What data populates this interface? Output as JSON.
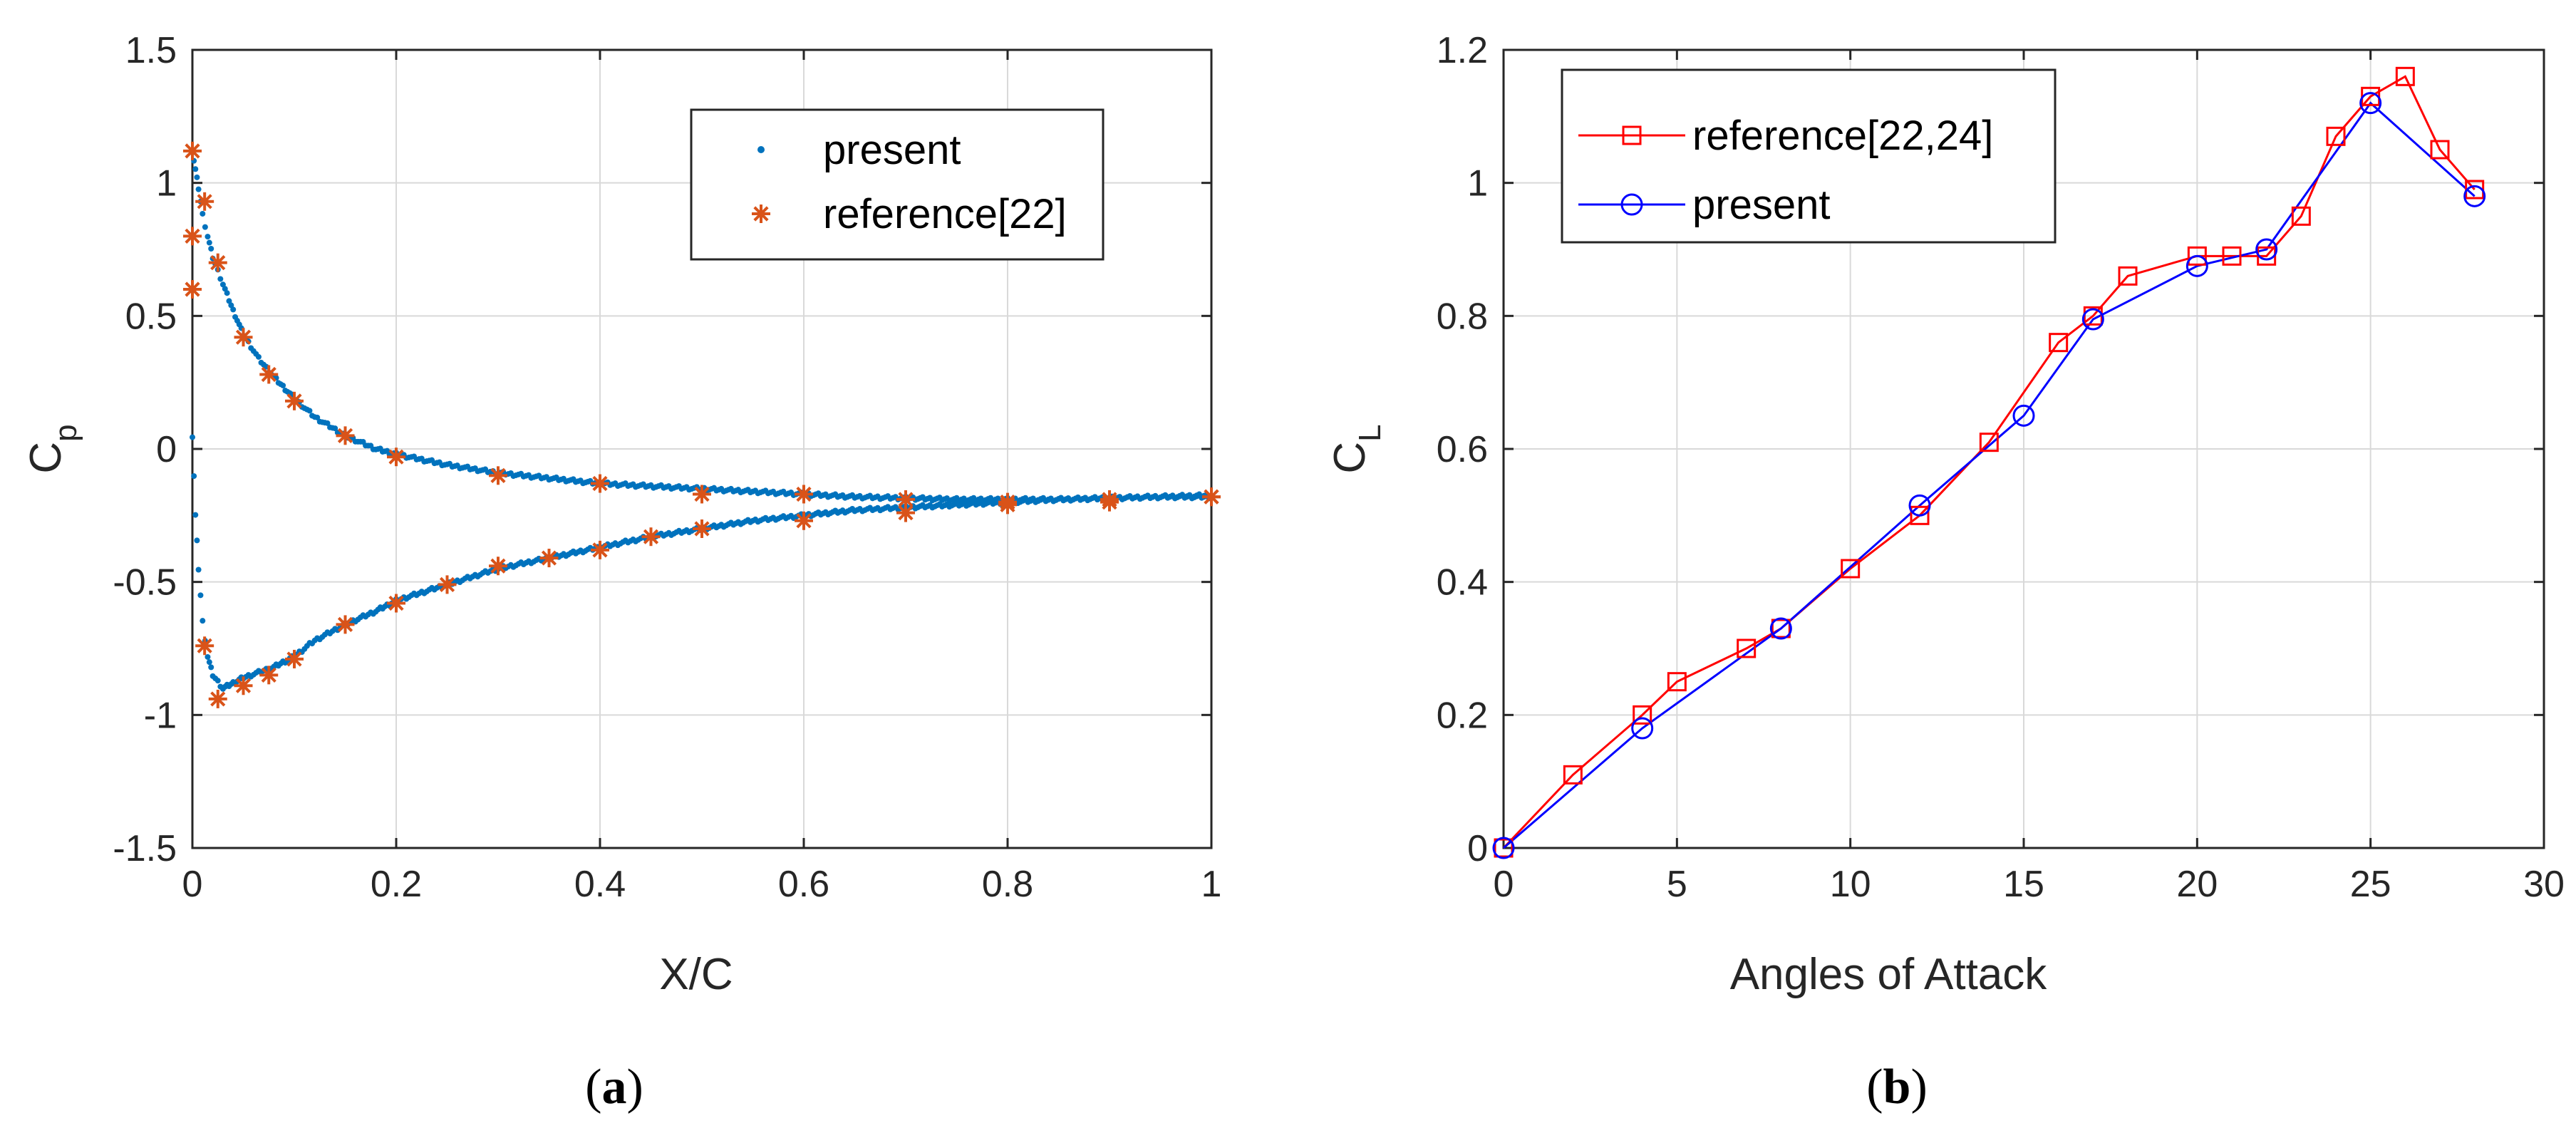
{
  "colors": {
    "present_a": "#0072BD",
    "reference_a": "#D95319",
    "reference_b": "#FF0000",
    "present_b": "#0000FF",
    "grid": "#D9D9D9",
    "axis": "#262626"
  },
  "panels": {
    "a": {
      "open": "(",
      "letter": "a",
      "close": ")"
    },
    "b": {
      "open": "(",
      "letter": "b",
      "close": ")"
    }
  },
  "chart_data": [
    {
      "type": "scatter",
      "xlabel": "X/C",
      "ylabel": "C",
      "ylabel_subscript": "p",
      "xlim": [
        0,
        1
      ],
      "ylim": [
        -1.5,
        1.5
      ],
      "xticks": [
        0,
        0.2,
        0.4,
        0.6,
        0.8,
        1
      ],
      "xtick_labels": [
        "0",
        "0.2",
        "0.4",
        "0.6",
        "0.8",
        "1"
      ],
      "yticks": [
        -1.5,
        -1,
        -0.5,
        0,
        0.5,
        1,
        1.5
      ],
      "ytick_labels": [
        "-1.5",
        "-1",
        "-0.5",
        "0",
        "0.5",
        "1",
        "1.5"
      ],
      "grid": true,
      "legend": "top-right",
      "series": [
        {
          "name": "present",
          "marker": "dot",
          "upper_surface": {
            "x": [
              0.0,
              0.003,
              0.006,
              0.01,
              0.015,
              0.02,
              0.03,
              0.04,
              0.05,
              0.065,
              0.08,
              0.1,
              0.12,
              0.15,
              0.18,
              0.2,
              0.25,
              0.3,
              0.35,
              0.4,
              0.45,
              0.5,
              0.55,
              0.6,
              0.65,
              0.7,
              0.75,
              0.8,
              0.85,
              0.9,
              0.95,
              1.0
            ],
            "y": [
              1.12,
              1.05,
              0.98,
              0.88,
              0.8,
              0.72,
              0.62,
              0.52,
              0.43,
              0.34,
              0.27,
              0.19,
              0.12,
              0.05,
              0.0,
              -0.02,
              -0.06,
              -0.09,
              -0.11,
              -0.13,
              -0.14,
              -0.15,
              -0.16,
              -0.17,
              -0.18,
              -0.185,
              -0.19,
              -0.19,
              -0.19,
              -0.185,
              -0.18,
              -0.18
            ]
          },
          "lower_surface": {
            "x": [
              0.0,
              0.003,
              0.006,
              0.01,
              0.015,
              0.02,
              0.03,
              0.04,
              0.05,
              0.065,
              0.08,
              0.1,
              0.12,
              0.15,
              0.18,
              0.2,
              0.25,
              0.3,
              0.35,
              0.4,
              0.45,
              0.5,
              0.55,
              0.6,
              0.65,
              0.7,
              0.75,
              0.8,
              0.85,
              0.9,
              0.95,
              1.0
            ],
            "y": [
              0.05,
              -0.25,
              -0.45,
              -0.65,
              -0.78,
              -0.85,
              -0.9,
              -0.88,
              -0.86,
              -0.84,
              -0.82,
              -0.78,
              -0.72,
              -0.66,
              -0.61,
              -0.57,
              -0.51,
              -0.45,
              -0.41,
              -0.37,
              -0.33,
              -0.3,
              -0.27,
              -0.25,
              -0.23,
              -0.22,
              -0.21,
              -0.2,
              -0.19,
              -0.185,
              -0.18,
              -0.175
            ]
          }
        },
        {
          "name": "reference[22]",
          "marker": "asterisk",
          "x": [
            0.0,
            0.0,
            0.0,
            0.012,
            0.025,
            0.05,
            0.075,
            0.1,
            0.15,
            0.2,
            0.3,
            0.4,
            0.5,
            0.6,
            0.7,
            0.8,
            0.9,
            1.0,
            0.012,
            0.025,
            0.05,
            0.075,
            0.1,
            0.15,
            0.2,
            0.25,
            0.3,
            0.35,
            0.4,
            0.45,
            0.5,
            0.6,
            0.7,
            0.8,
            0.9,
            1.0
          ],
          "y": [
            1.12,
            0.8,
            0.6,
            0.93,
            0.7,
            0.42,
            0.28,
            0.18,
            0.05,
            -0.03,
            -0.1,
            -0.13,
            -0.17,
            -0.17,
            -0.19,
            -0.2,
            -0.19,
            -0.18,
            -0.74,
            -0.94,
            -0.89,
            -0.85,
            -0.79,
            -0.66,
            -0.58,
            -0.51,
            -0.44,
            -0.41,
            -0.38,
            -0.33,
            -0.3,
            -0.27,
            -0.24,
            -0.21,
            -0.2,
            -0.18
          ]
        }
      ]
    },
    {
      "type": "line",
      "xlabel": "Angles of Attack",
      "ylabel": "C",
      "ylabel_subscript": "L",
      "xlim": [
        0,
        30
      ],
      "ylim": [
        0,
        1.2
      ],
      "xticks": [
        0,
        5,
        10,
        15,
        20,
        25,
        30
      ],
      "xtick_labels": [
        "0",
        "5",
        "10",
        "15",
        "20",
        "25",
        "30"
      ],
      "yticks": [
        0,
        0.2,
        0.4,
        0.6,
        0.8,
        1,
        1.2
      ],
      "ytick_labels": [
        "0",
        "0.2",
        "0.4",
        "0.6",
        "0.8",
        "1",
        "1.2"
      ],
      "grid": true,
      "legend": "top-left",
      "series": [
        {
          "name": "reference[22,24]",
          "marker": "square",
          "x": [
            0,
            2,
            4,
            5,
            7,
            8,
            10,
            12,
            14,
            16,
            17,
            18,
            20,
            21,
            22,
            23,
            24,
            25,
            26,
            27,
            28
          ],
          "y": [
            0,
            0.11,
            0.2,
            0.25,
            0.3,
            0.33,
            0.42,
            0.5,
            0.61,
            0.76,
            0.8,
            0.86,
            0.89,
            0.89,
            0.89,
            0.95,
            1.07,
            1.13,
            1.16,
            1.05,
            0.99
          ]
        },
        {
          "name": "present",
          "marker": "circle",
          "x": [
            0,
            4,
            8,
            12,
            15,
            17,
            20,
            22,
            25,
            28
          ],
          "y": [
            0,
            0.18,
            0.33,
            0.515,
            0.65,
            0.795,
            0.875,
            0.9,
            1.12,
            0.98
          ]
        }
      ]
    }
  ]
}
